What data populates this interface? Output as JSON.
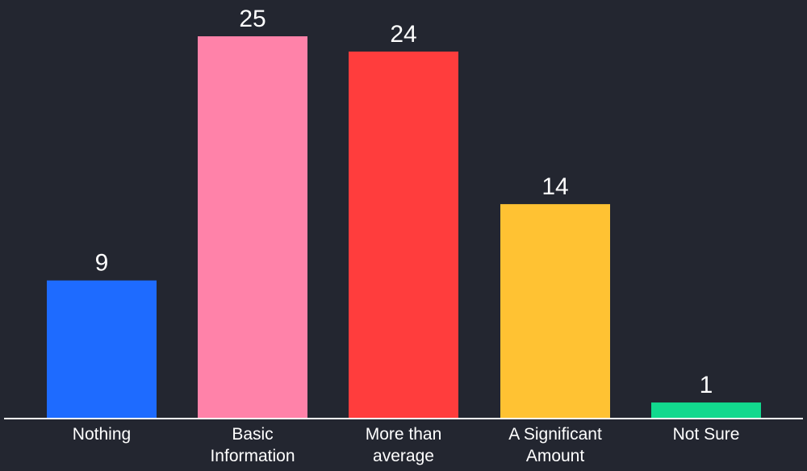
{
  "page": {
    "background": "#232630"
  },
  "chart_data": {
    "type": "bar",
    "title": "",
    "xlabel": "",
    "ylabel": "",
    "categories": [
      [
        "Nothing"
      ],
      [
        "Basic",
        "Information"
      ],
      [
        "More than",
        "average"
      ],
      [
        "A Significant",
        "Amount"
      ],
      [
        "Not Sure"
      ]
    ],
    "values": [
      9,
      25,
      24,
      14,
      1
    ],
    "value_labels": [
      "9",
      "25",
      "24",
      "14",
      "1"
    ],
    "colors": [
      "#1e6bff",
      "#ff82a9",
      "#ff3d3d",
      "#ffc233",
      "#12d98e"
    ],
    "ylim": [
      0,
      25
    ],
    "grid": false,
    "legend": "none",
    "axis_color": "#ffffff",
    "text_color": "#ffffff"
  }
}
